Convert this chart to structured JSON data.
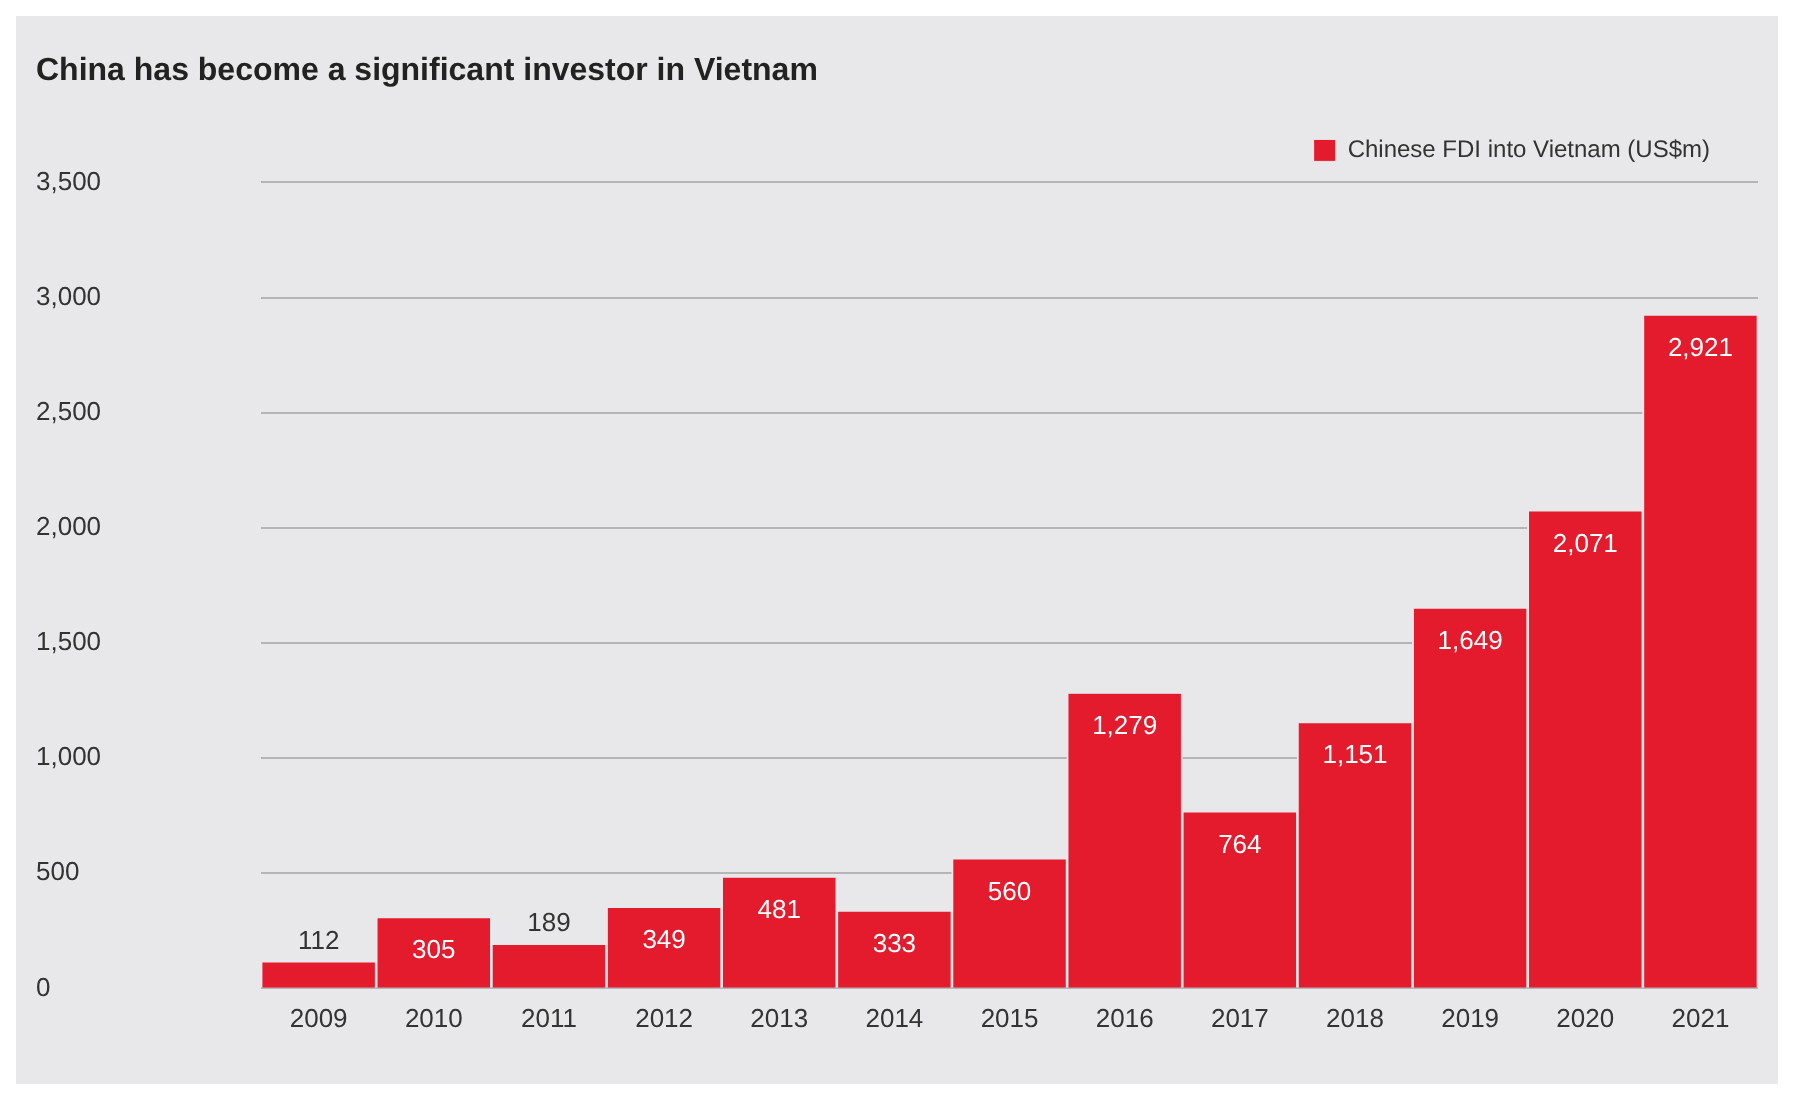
{
  "chart_data": {
    "type": "bar",
    "title": "China has become a significant investor in Vietnam",
    "categories": [
      "2009",
      "2010",
      "2011",
      "2012",
      "2013",
      "2014",
      "2015",
      "2016",
      "2017",
      "2018",
      "2019",
      "2020",
      "2021"
    ],
    "series": [
      {
        "name": "Chinese FDI into Vietnam (US$m)",
        "color": "#e31b2d",
        "values": [
          112,
          305,
          189,
          349,
          481,
          333,
          560,
          1279,
          764,
          1151,
          1649,
          2071,
          2921
        ],
        "value_labels": [
          "112",
          "305",
          "189",
          "349",
          "481",
          "333",
          "560",
          "1,279",
          "764",
          "1,151",
          "1,649",
          "2,071",
          "2,921"
        ]
      }
    ],
    "ylim": [
      0,
      3500
    ],
    "yticks": [
      {
        "value": 0,
        "label": "0"
      },
      {
        "value": 500,
        "label": "500"
      },
      {
        "value": 1000,
        "label": "1,000"
      },
      {
        "value": 1500,
        "label": "1,500"
      },
      {
        "value": 2000,
        "label": "2,000"
      },
      {
        "value": 2500,
        "label": "2,500"
      },
      {
        "value": 3000,
        "label": "3,000"
      },
      {
        "value": 3500,
        "label": "3,500"
      }
    ],
    "grid": "y",
    "legend": "top right"
  }
}
